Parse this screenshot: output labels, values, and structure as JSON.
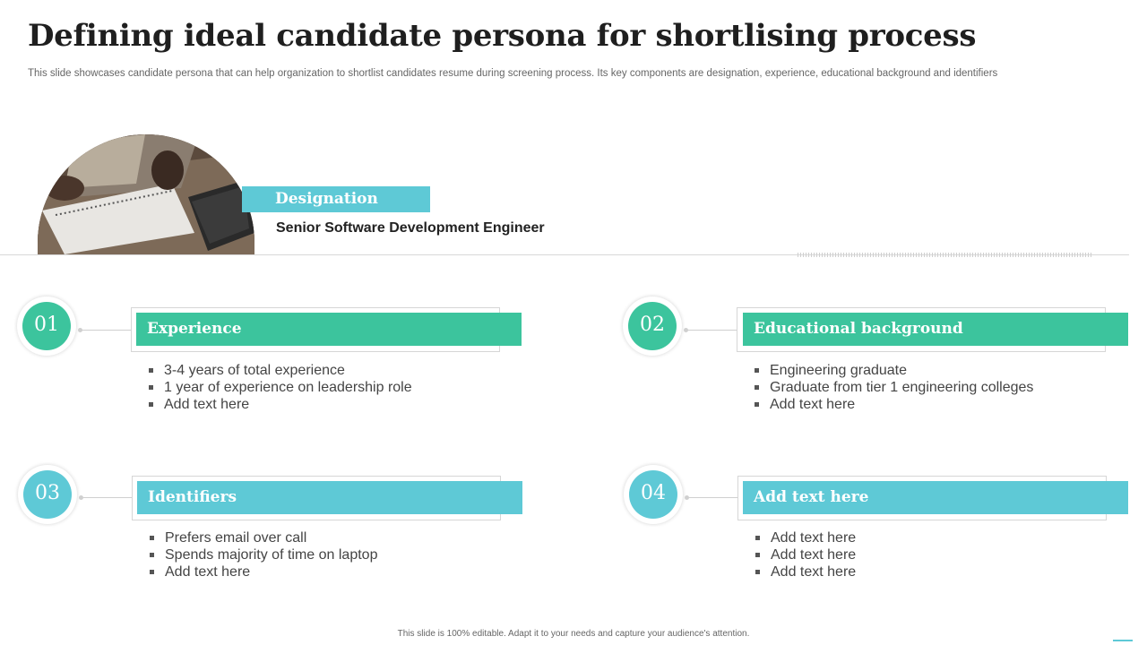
{
  "title": "Defining ideal candidate persona for shortlising process",
  "subtitle": "This slide showcases candidate persona that can help organization to shortlist candidates resume during screening process. Its key components are designation, experience, educational background and identifiers",
  "designation": {
    "label": "Designation",
    "value": "Senior Software Development Engineer"
  },
  "sections": [
    {
      "number": "01",
      "heading": "Experience",
      "color": "#3cc49d",
      "items": [
        "3-4 years of total experience",
        "1 year of experience on leadership role",
        "Add text here"
      ]
    },
    {
      "number": "02",
      "heading": "Educational background",
      "color": "#3cc49d",
      "items": [
        "Engineering graduate",
        "Graduate from tier 1 engineering colleges",
        "Add text here"
      ]
    },
    {
      "number": "03",
      "heading": "Identifiers",
      "color": "#5ec9d6",
      "items": [
        "Prefers email over call",
        "Spends majority of time on laptop",
        "Add text here"
      ]
    },
    {
      "number": "04",
      "heading": "Add text here",
      "color": "#5ec9d6",
      "items": [
        "Add text here",
        "Add  text here",
        "Add text here"
      ]
    }
  ],
  "footer": "This slide is 100% editable. Adapt it to your needs and capture your audience's attention."
}
